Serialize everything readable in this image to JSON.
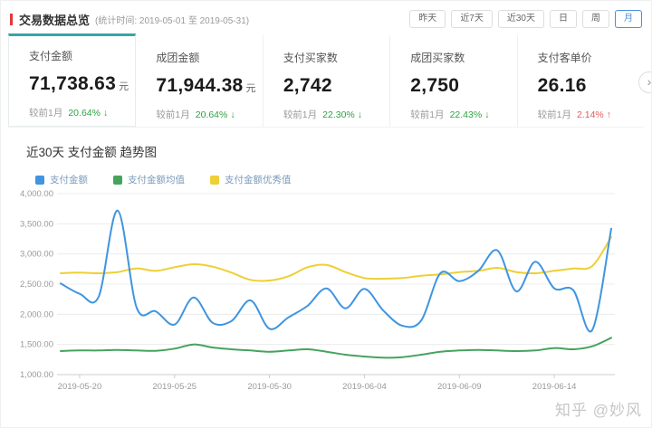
{
  "header": {
    "title": "交易数据总览",
    "subtitle": "(统计时间: 2019-05-01 至 2019-05-31)",
    "buttons": [
      {
        "label": "昨天",
        "active": false
      },
      {
        "label": "近7天",
        "active": false
      },
      {
        "label": "近30天",
        "active": false
      },
      {
        "label": "日",
        "active": false
      },
      {
        "label": "周",
        "active": false
      },
      {
        "label": "月",
        "active": true
      }
    ]
  },
  "cards": [
    {
      "label": "支付金额",
      "value": "71,738.63",
      "unit": "元",
      "compare_prefix": "较前1月",
      "change": "20.64%",
      "direction": "down",
      "selected": true
    },
    {
      "label": "成团金额",
      "value": "71,944.38",
      "unit": "元",
      "compare_prefix": "较前1月",
      "change": "20.64%",
      "direction": "down",
      "selected": false
    },
    {
      "label": "支付买家数",
      "value": "2,742",
      "unit": "",
      "compare_prefix": "较前1月",
      "change": "22.30%",
      "direction": "down",
      "selected": false
    },
    {
      "label": "成团买家数",
      "value": "2,750",
      "unit": "",
      "compare_prefix": "较前1月",
      "change": "22.43%",
      "direction": "down",
      "selected": false
    },
    {
      "label": "支付客单价",
      "value": "26.16",
      "unit": "",
      "compare_prefix": "较前1月",
      "change": "2.14%",
      "direction": "up",
      "selected": false
    }
  ],
  "icons": {
    "trend_down": "↓",
    "trend_up": "↑",
    "scroll_right": "›"
  },
  "chart": {
    "title": "近30天 支付金额 趋势图"
  },
  "chart_data": {
    "type": "line",
    "title": "近30天 支付金额 趋势图",
    "x": [
      "2019-05-19",
      "2019-05-20",
      "2019-05-21",
      "2019-05-22",
      "2019-05-23",
      "2019-05-24",
      "2019-05-25",
      "2019-05-26",
      "2019-05-27",
      "2019-05-28",
      "2019-05-29",
      "2019-05-30",
      "2019-05-31",
      "2019-06-01",
      "2019-06-02",
      "2019-06-03",
      "2019-06-04",
      "2019-06-05",
      "2019-06-06",
      "2019-06-07",
      "2019-06-08",
      "2019-06-09",
      "2019-06-10",
      "2019-06-11",
      "2019-06-12",
      "2019-06-13",
      "2019-06-14",
      "2019-06-15",
      "2019-06-16",
      "2019-06-17"
    ],
    "x_tick_labels": [
      "2019-05-20",
      "2019-05-25",
      "2019-05-30",
      "2019-06-04",
      "2019-06-09",
      "2019-06-14"
    ],
    "x_tick_indices": [
      1,
      6,
      11,
      16,
      21,
      26
    ],
    "series": [
      {
        "name": "支付金额",
        "color": "#3f95e0",
        "values": [
          2510,
          2340,
          2290,
          3720,
          2110,
          2050,
          1830,
          2280,
          1860,
          1890,
          2230,
          1760,
          1950,
          2140,
          2430,
          2100,
          2420,
          2060,
          1810,
          1900,
          2680,
          2550,
          2720,
          3060,
          2380,
          2870,
          2430,
          2400,
          1740,
          3420
        ]
      },
      {
        "name": "支付金额均值",
        "color": "#46a35e",
        "values": [
          1390,
          1400,
          1400,
          1410,
          1400,
          1395,
          1430,
          1500,
          1450,
          1420,
          1400,
          1380,
          1400,
          1420,
          1380,
          1330,
          1300,
          1280,
          1290,
          1330,
          1380,
          1400,
          1410,
          1400,
          1390,
          1400,
          1440,
          1420,
          1470,
          1610
        ]
      },
      {
        "name": "支付金额优秀值",
        "color": "#eecf35",
        "values": [
          2680,
          2690,
          2680,
          2700,
          2760,
          2720,
          2780,
          2830,
          2790,
          2690,
          2570,
          2560,
          2630,
          2780,
          2820,
          2700,
          2600,
          2590,
          2600,
          2640,
          2660,
          2700,
          2720,
          2770,
          2700,
          2680,
          2720,
          2760,
          2800,
          3280
        ]
      }
    ],
    "ylim": [
      1000,
      4000
    ],
    "y_ticks": [
      "1,000.00",
      "1,500.00",
      "2,000.00",
      "2,500.00",
      "3,000.00",
      "3,500.00",
      "4,000.00"
    ],
    "grid": true,
    "legend_position": "top-left"
  },
  "watermark": "知乎 @妙风",
  "colors": {
    "accent_red": "#e4393c",
    "active_button_blue": "#4a90d9",
    "selected_card_teal": "#35a5a5",
    "change_down_green": "#2fa243",
    "change_up_red": "#e05c5c"
  }
}
